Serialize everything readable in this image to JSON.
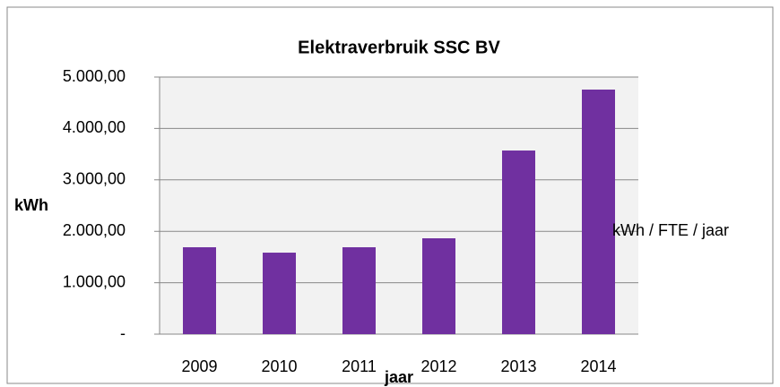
{
  "chart_data": {
    "type": "bar",
    "title": "Elektraverbruik SSC BV",
    "x_label": "jaar",
    "y_label": "kWh",
    "categories": [
      "2009",
      "2010",
      "2011",
      "2012",
      "2013",
      "2014"
    ],
    "series": [
      {
        "name": "kWh / FTE / jaar",
        "color": "#7030a0",
        "values": [
          1690,
          1585,
          1690,
          1864,
          3571,
          4756
        ]
      }
    ],
    "ylim": [
      0,
      5000
    ],
    "yticks": [
      {
        "value": 0,
        "label": "-"
      },
      {
        "value": 1000,
        "label": "1.000,00"
      },
      {
        "value": 2000,
        "label": "2.000,00"
      },
      {
        "value": 3000,
        "label": "3.000,00"
      },
      {
        "value": 4000,
        "label": "4.000,00"
      },
      {
        "value": 5000,
        "label": "5.000,00"
      }
    ],
    "grid": true,
    "legend": "right"
  }
}
